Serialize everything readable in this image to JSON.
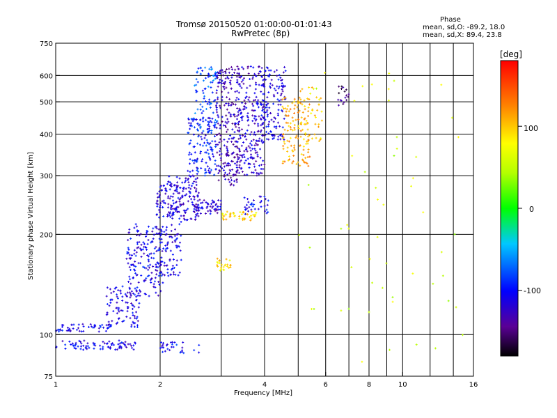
{
  "header": {
    "title_line1": "Tromsø 20150520 01:00:00-01:01:43",
    "title_line2": "RwPretec (8p)"
  },
  "phase_box": {
    "title": "Phase",
    "line_o": "mean, sd,O: -89.2, 18.0",
    "line_x": "mean, sd,X:  89.4, 23.8"
  },
  "colorbar": {
    "unit": "[deg]",
    "ticks": [
      "100",
      "0",
      "-100"
    ],
    "tick_values": [
      100,
      0,
      -100
    ],
    "range": [
      -180,
      180
    ]
  },
  "chart_data": {
    "type": "scatter",
    "xlabel": "Frequency [MHz]",
    "ylabel": "Stationary phase Virtual Height [km]",
    "x_scale": "log",
    "y_scale": "log",
    "xlim": [
      1,
      16
    ],
    "ylim": [
      75,
      750
    ],
    "x_ticks": [
      1,
      2,
      4,
      6,
      8,
      10,
      16
    ],
    "x_tick_labels": [
      "1",
      "2",
      "4",
      "6",
      "8",
      "10",
      "16"
    ],
    "x_minor_gridlines": [
      3,
      5,
      7,
      9,
      12,
      14
    ],
    "y_ticks": [
      75,
      100,
      200,
      300,
      400,
      500,
      600,
      750
    ],
    "y_tick_labels": [
      "75",
      "100",
      "200",
      "300",
      "400",
      "500",
      "600",
      "750"
    ],
    "y_gridlines": [
      100,
      200,
      300,
      400,
      500,
      600
    ],
    "grid": true,
    "color_encodes": "phase [deg]",
    "point_groups": [
      {
        "f": [
          1.0,
          1.7
        ],
        "h": [
          90,
          96
        ],
        "phase": -110,
        "n": 80
      },
      {
        "f": [
          1.0,
          1.45
        ],
        "h": [
          102,
          108
        ],
        "phase": -105,
        "n": 55
      },
      {
        "f": [
          1.4,
          1.75
        ],
        "h": [
          105,
          140
        ],
        "phase": -112,
        "n": 90
      },
      {
        "f": [
          1.6,
          2.05
        ],
        "h": [
          130,
          215
        ],
        "phase": -108,
        "n": 170
      },
      {
        "f": [
          1.95,
          2.3
        ],
        "h": [
          150,
          290
        ],
        "phase": -110,
        "n": 160
      },
      {
        "f": [
          2.1,
          2.6
        ],
        "h": [
          220,
          300
        ],
        "phase": -115,
        "n": 120
      },
      {
        "f": [
          2.4,
          2.9
        ],
        "h": [
          300,
          450
        ],
        "phase": -100,
        "n": 140
      },
      {
        "f": [
          2.5,
          2.95
        ],
        "h": [
          400,
          640
        ],
        "phase": -80,
        "n": 90
      },
      {
        "f": [
          2.9,
          3.4
        ],
        "h": [
          280,
          640
        ],
        "phase": -130,
        "n": 220
      },
      {
        "f": [
          3.3,
          4.0
        ],
        "h": [
          300,
          640
        ],
        "phase": -120,
        "n": 230
      },
      {
        "f": [
          3.9,
          4.6
        ],
        "h": [
          380,
          640
        ],
        "phase": -110,
        "n": 140
      },
      {
        "f": [
          4.5,
          5.4
        ],
        "h": [
          320,
          520
        ],
        "phase": 110,
        "n": 120
      },
      {
        "f": [
          5.0,
          5.9
        ],
        "h": [
          380,
          560
        ],
        "phase": 95,
        "n": 45
      },
      {
        "f": [
          2.5,
          3.0
        ],
        "h": [
          230,
          255
        ],
        "phase": -120,
        "n": 60
      },
      {
        "f": [
          3.0,
          3.8
        ],
        "h": [
          220,
          235
        ],
        "phase": 95,
        "n": 45
      },
      {
        "f": [
          3.5,
          4.1
        ],
        "h": [
          230,
          260
        ],
        "phase": -105,
        "n": 35
      },
      {
        "f": [
          2.9,
          3.2
        ],
        "h": [
          155,
          170
        ],
        "phase": 90,
        "n": 25
      },
      {
        "f": [
          2.0,
          2.6
        ],
        "h": [
          88,
          95
        ],
        "phase": -100,
        "n": 30
      },
      {
        "f": [
          6.5,
          7.0
        ],
        "h": [
          480,
          560
        ],
        "phase": -150,
        "n": 18
      },
      {
        "f": [
          5.0,
          15.0
        ],
        "h": [
          80,
          640
        ],
        "phase": 60,
        "n": 55
      }
    ]
  }
}
